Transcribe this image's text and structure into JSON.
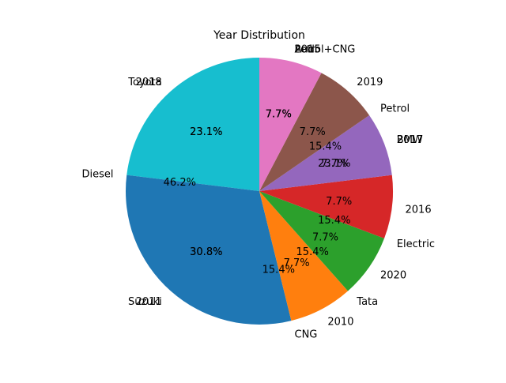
{
  "chart_data": [
    {
      "type": "pie",
      "title": "Year Distribution",
      "slices": [
        {
          "label": "2018",
          "value": 23.1,
          "pct_label": "23.1%",
          "color": "#17becf"
        },
        {
          "label": "2011",
          "value": 30.8,
          "pct_label": "30.8%",
          "color": "#1f77b4"
        },
        {
          "label": "2010",
          "value": 7.7,
          "pct_label": "7.7%",
          "color": "#ff7f0e"
        },
        {
          "label": "2020",
          "value": 7.7,
          "pct_label": "7.7%",
          "color": "#2ca02c"
        },
        {
          "label": "2016",
          "value": 7.7,
          "pct_label": "7.7%",
          "color": "#d62728"
        },
        {
          "label": "2017",
          "value": 7.7,
          "pct_label": "7.7%",
          "color": "#9467bd"
        },
        {
          "label": "2019",
          "value": 7.7,
          "pct_label": "7.7%",
          "color": "#8c564b"
        },
        {
          "label": "2015",
          "value": 7.7,
          "pct_label": "7.7%",
          "color": "#e377c2"
        }
      ]
    },
    {
      "type": "pie",
      "slices": [
        {
          "label": "Diesel",
          "value": 46.2,
          "pct_label": "46.2%"
        },
        {
          "label": "CNG",
          "value": 15.4,
          "pct_label": "15.4%"
        },
        {
          "label": "Electric",
          "value": 15.4,
          "pct_label": "15.4%"
        },
        {
          "label": "Petrol",
          "value": 15.4,
          "pct_label": "15.4%"
        },
        {
          "label": "Petrol+CNG",
          "value": 7.7,
          "pct_label": "7.7%"
        }
      ]
    },
    {
      "type": "pie",
      "slices": [
        {
          "label": "Toyota",
          "value": 23.1,
          "pct_label": "23.1%"
        },
        {
          "label": "Suzuki",
          "value": 30.8,
          "pct_label": "30.8%"
        },
        {
          "label": "Tata",
          "value": 15.4,
          "pct_label": "15.4%"
        },
        {
          "label": "BMW",
          "value": 23.1,
          "pct_label": "23.1%"
        },
        {
          "label": "Audi",
          "value": 7.7,
          "pct_label": "7.7%"
        }
      ]
    }
  ]
}
